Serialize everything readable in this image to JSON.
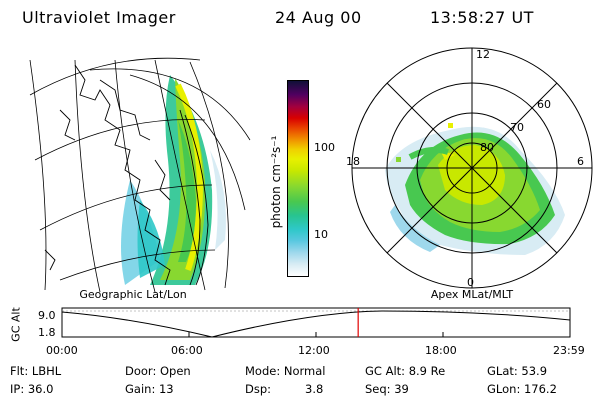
{
  "header": {
    "title": "Ultraviolet Imager",
    "date": "24 Aug 00",
    "time": "13:58:27 UT"
  },
  "colorbar": {
    "label": "photon cm⁻²s⁻¹",
    "ticks": [
      "100",
      "10"
    ],
    "scale": "log",
    "colors": [
      "#ffffff",
      "#d8ecf4",
      "#9ed8ec",
      "#5ac8e0",
      "#2ec8c8",
      "#28c490",
      "#48c850",
      "#88d830",
      "#c8e800",
      "#e8f000",
      "#f0d000",
      "#f09000",
      "#e84000",
      "#d80000",
      "#a00040",
      "#500060",
      "#101038"
    ]
  },
  "left_map": {
    "label": "Geographic Lat/Lon"
  },
  "right_map": {
    "label": "Apex MLat/MLT",
    "mlt_labels": [
      "12",
      "18",
      "6",
      "0"
    ],
    "lat_labels": [
      "60",
      "70",
      "80"
    ]
  },
  "timeline": {
    "ylabel": "GC Alt",
    "ymax": "9.0",
    "ymin": "1.8",
    "ticks": [
      "00:00",
      "06:00",
      "12:00",
      "18:00",
      "23:59"
    ],
    "marker_fraction": 0.583,
    "marker_color": "#e00000"
  },
  "info": {
    "flt": "Flt: LBHL",
    "ip": "IP: 36.0",
    "door": "Door: Open",
    "gain": "Gain: 13",
    "mode": "Mode: Normal",
    "dsp_label": "Dsp:",
    "dsp_value": "3.8",
    "gc_alt": "GC Alt: 8.9 Re",
    "seq": "Seq: 39",
    "glat": "GLat: 53.9",
    "glon": "GLon: 176.2"
  }
}
